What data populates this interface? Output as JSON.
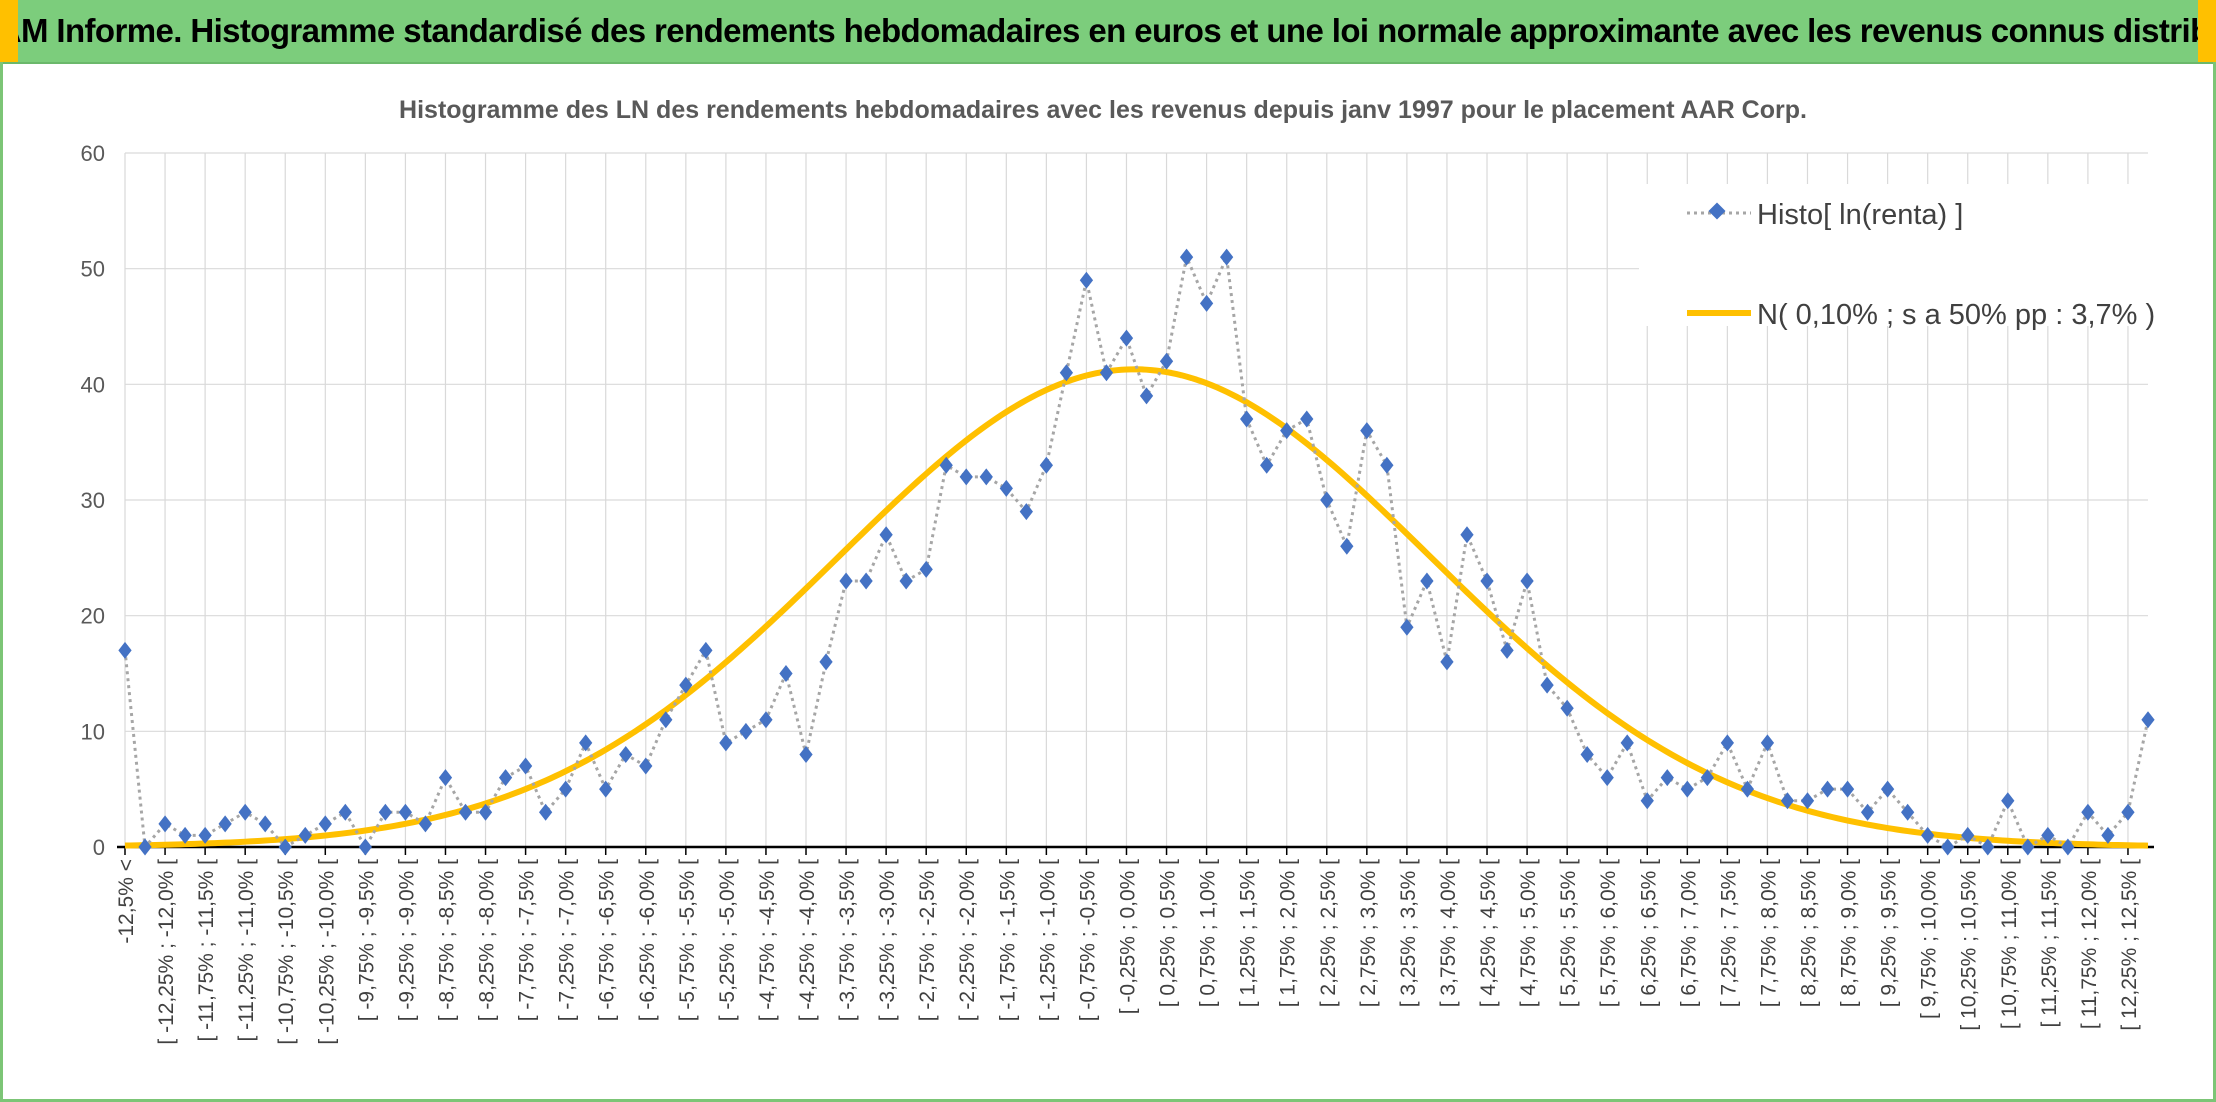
{
  "header": {
    "title": "ADAM Informe. Histogramme standardisé des rendements hebdomadaires en euros et une loi normale approximante avec les revenus connus distribués"
  },
  "colors": {
    "banner": "#7ccd7c",
    "banner_corner": "#ffc000",
    "histogram": "#4472c4",
    "histogram_line": "#a6a6a6",
    "normal": "#ffc000",
    "grid": "#d9d9d9"
  },
  "chart_data": {
    "type": "line",
    "title": "Histogramme des LN des rendements hebdomadaires avec les revenus depuis janv 1997 pour le placement AAR Corp.",
    "xlabel": "",
    "ylabel": "",
    "ylim": [
      0,
      60
    ],
    "yticks": [
      0,
      10,
      20,
      30,
      40,
      50,
      60
    ],
    "grid": true,
    "legend": "top-right",
    "x_ticks_shown": [
      "-12,5% <",
      "[ -12,25% ; -12,0% [",
      "[ -11,75% ; -11,5% [",
      "[ -11,25% ; -11,0% [",
      "[ -10,75% ; -10,5% [",
      "[ -10,25% ; -10,0% [",
      "[ -9,75% ; -9,5% [",
      "[ -9,25% ; -9,0% [",
      "[ -8,75% ; -8,5% [",
      "[ -8,25% ; -8,0% [",
      "[ -7,75% ; -7,5% [",
      "[ -7,25% ; -7,0% [",
      "[ -6,75% ; -6,5% [",
      "[ -6,25% ; -6,0% [",
      "[ -5,75% ; -5,5% [",
      "[ -5,25% ; -5,0% [",
      "[ -4,75% ; -4,5% [",
      "[ -4,25% ; -4,0% [",
      "[ -3,75% ; -3,5% [",
      "[ -3,25% ; -3,0% [",
      "[ -2,75% ; -2,5% [",
      "[ -2,25% ; -2,0% [",
      "[ -1,75% ; -1,5% [",
      "[ -1,25% ; -1,0% [",
      "[ -0,75% ; -0,5% [",
      "[ -0,25% ; 0,0% [",
      "[ 0,25% ; 0,5% [",
      "[ 0,75% ; 1,0% [",
      "[ 1,25% ; 1,5% [",
      "[ 1,75% ; 2,0% [",
      "[ 2,25% ; 2,5% [",
      "[ 2,75% ; 3,0% [",
      "[ 3,25% ; 3,5% [",
      "[ 3,75% ; 4,0% [",
      "[ 4,25% ; 4,5% [",
      "[ 4,75% ; 5,0% [",
      "[ 5,25% ; 5,5% [",
      "[ 5,75% ; 6,0% [",
      "[ 6,25% ; 6,5% [",
      "[ 6,75% ; 7,0% [",
      "[ 7,25% ; 7,5% [",
      "[ 7,75% ; 8,0% [",
      "[ 8,25% ; 8,5% [",
      "[ 8,75% ; 9,0% [",
      "[ 9,25% ; 9,5% [",
      "[ 9,75% ; 10,0% [",
      "[ 10,25% ; 10,5% [",
      "[ 10,75% ; 11,0% [",
      "[ 11,25% ; 11,5% [",
      "[ 11,75% ; 12,0% [",
      "[ 12,25% ; 12,5% ["
    ],
    "series": [
      {
        "name": "Histo[ ln(renta) ]",
        "style": "dotted-line-diamond-markers",
        "color": "#4472c4",
        "values": [
          17,
          0,
          2,
          1,
          1,
          2,
          3,
          2,
          0,
          1,
          2,
          3,
          0,
          3,
          3,
          2,
          6,
          3,
          3,
          6,
          7,
          3,
          5,
          9,
          5,
          8,
          7,
          11,
          14,
          17,
          9,
          10,
          11,
          15,
          8,
          16,
          23,
          23,
          27,
          23,
          24,
          33,
          32,
          32,
          31,
          29,
          33,
          41,
          49,
          41,
          44,
          39,
          42,
          51,
          47,
          51,
          37,
          33,
          36,
          37,
          30,
          26,
          36,
          33,
          19,
          23,
          16,
          27,
          23,
          17,
          23,
          14,
          12,
          8,
          6,
          9,
          4,
          6,
          5,
          6,
          9,
          5,
          9,
          4,
          4,
          5,
          5,
          3,
          5,
          3,
          1,
          0,
          1,
          0,
          4,
          0,
          1,
          0,
          3,
          1,
          3,
          11
        ]
      },
      {
        "name": "N( 0,10% ; s a 50% pp : 3,7% )",
        "style": "smooth-line",
        "color": "#ffc000",
        "mean_pct": 0.1,
        "sd_pct": 3.7,
        "peak": 41.3
      }
    ]
  }
}
